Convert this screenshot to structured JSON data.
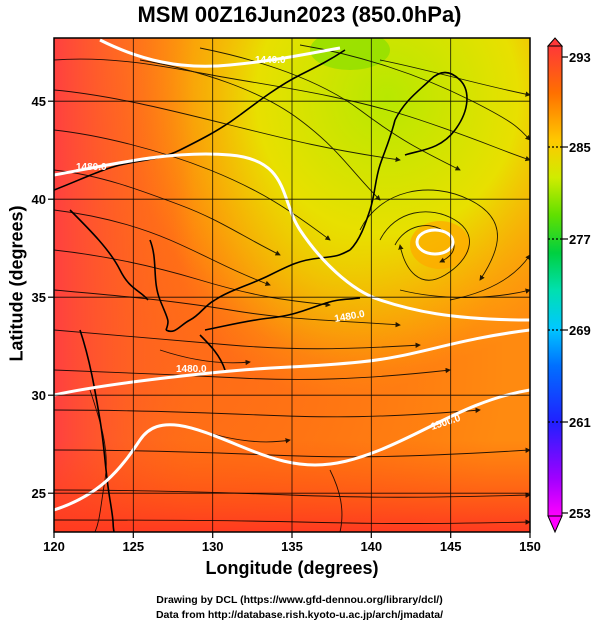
{
  "title": "MSM 00Z16Jun2023 (850.0hPa)",
  "axes": {
    "xlabel": "Longitude (degrees)",
    "ylabel": "Latitude  (degrees)",
    "lon_range": [
      120,
      150
    ],
    "lat_range": [
      22.4,
      47.6
    ],
    "lon_ticks": [
      "120",
      "125",
      "130",
      "135",
      "140",
      "145",
      "150"
    ],
    "lat_ticks": [
      "25",
      "30",
      "35",
      "40",
      "45"
    ],
    "grid": true
  },
  "colorbar": {
    "ticks": [
      "293",
      "285",
      "277",
      "269",
      "261",
      "253"
    ],
    "min": 253,
    "max": 293,
    "colors": [
      "#ff00ff",
      "#8000ff",
      "#0000ff",
      "#0060ff",
      "#00c0ff",
      "#00e0c0",
      "#00d060",
      "#40e000",
      "#c0e800",
      "#ffd000",
      "#ff9000",
      "#ff5000",
      "#ff3030"
    ]
  },
  "contours": {
    "labels": [
      "1440.0",
      "1480.0",
      "1480.0",
      "1480.0",
      "1500.0"
    ],
    "color": "#ffffff"
  },
  "credits": {
    "line1": "Drawing by DCL (https://www.gfd-dennou.org/library/dcl/)",
    "line2": "Data from http://database.rish.kyoto-u.ac.jp/arch/jmadata/"
  }
}
